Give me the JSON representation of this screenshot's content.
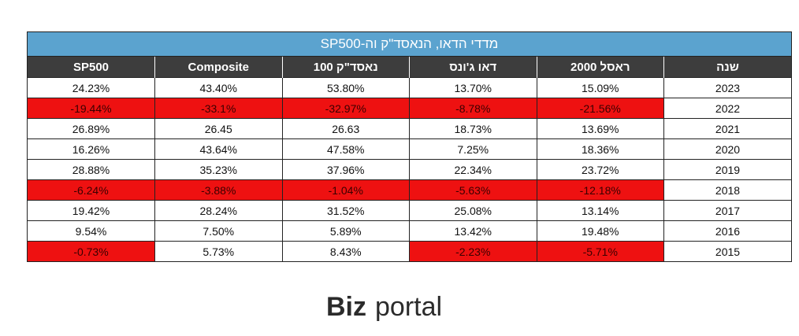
{
  "title": "מדדי הדאו, הנאסד\"ק וה-SP500",
  "columns": [
    "SP500",
    "Composite",
    "נאסד\"ק 100",
    "דאו ג'ונס",
    "ראסל 2000",
    "שנה"
  ],
  "rows": [
    {
      "cells": [
        "24.23%",
        "43.40%",
        "53.80%",
        "13.70%",
        "15.09%",
        "2023"
      ],
      "neg": [
        false,
        false,
        false,
        false,
        false,
        false
      ]
    },
    {
      "cells": [
        "-19.44%",
        "-33.1%",
        "-32.97%",
        "-8.78%",
        "-21.56%",
        "2022"
      ],
      "neg": [
        true,
        true,
        true,
        true,
        true,
        false
      ]
    },
    {
      "cells": [
        "26.89%",
        "26.45",
        "26.63",
        "18.73%",
        "13.69%",
        "2021"
      ],
      "neg": [
        false,
        false,
        false,
        false,
        false,
        false
      ]
    },
    {
      "cells": [
        "16.26%",
        "43.64%",
        "47.58%",
        "7.25%",
        "18.36%",
        "2020"
      ],
      "neg": [
        false,
        false,
        false,
        false,
        false,
        false
      ]
    },
    {
      "cells": [
        "28.88%",
        "35.23%",
        "37.96%",
        "22.34%",
        "23.72%",
        "2019"
      ],
      "neg": [
        false,
        false,
        false,
        false,
        false,
        false
      ]
    },
    {
      "cells": [
        "-6.24%",
        "-3.88%",
        "-1.04%",
        "-5.63%",
        "-12.18%",
        "2018"
      ],
      "neg": [
        true,
        true,
        true,
        true,
        true,
        false
      ]
    },
    {
      "cells": [
        "19.42%",
        "28.24%",
        "31.52%",
        "25.08%",
        "13.14%",
        "2017"
      ],
      "neg": [
        false,
        false,
        false,
        false,
        false,
        false
      ]
    },
    {
      "cells": [
        "9.54%",
        "7.50%",
        "5.89%",
        "13.42%",
        "19.48%",
        "2016"
      ],
      "neg": [
        false,
        false,
        false,
        false,
        false,
        false
      ]
    },
    {
      "cells": [
        "-0.73%",
        "5.73%",
        "8.43%",
        "-2.23%",
        "-5.71%",
        "2015"
      ],
      "neg": [
        true,
        false,
        false,
        true,
        true,
        false
      ]
    }
  ],
  "colors": {
    "header_bg": "#3d3d3d",
    "title_bg": "#5ba3cf",
    "negative_bg": "#ee1111"
  },
  "logo": {
    "text": "Bizportal"
  }
}
